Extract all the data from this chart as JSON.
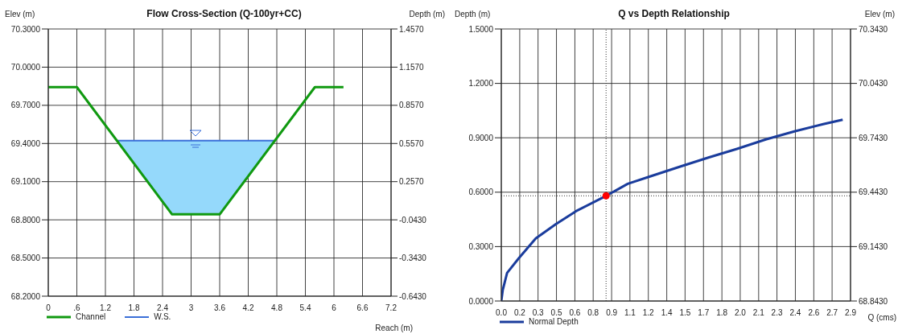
{
  "chart_data": [
    {
      "type": "line",
      "title": "Flow Cross-Section (Q-100yr+CC)",
      "xlabel": "Reach (m)",
      "ylabel": "Elev (m)",
      "y2label": "Depth (m)",
      "xlim": [
        0,
        7.2
      ],
      "xticks": [
        0,
        {
          "value": 0.6,
          "label": ".6"
        },
        1.2,
        1.8,
        2.4,
        3,
        3.6,
        4.2,
        4.8,
        5.4,
        6,
        6.6,
        7.2
      ],
      "ylim": [
        68.2,
        70.3
      ],
      "yticks": [
        {
          "value": 68.2,
          "label": "68.2000"
        },
        {
          "value": 68.5,
          "label": "68.5000"
        },
        {
          "value": 68.8,
          "label": "68.8000"
        },
        {
          "value": 69.1,
          "label": "69.1000"
        },
        {
          "value": 69.4,
          "label": "69.4000"
        },
        {
          "value": 69.7,
          "label": "69.7000"
        },
        {
          "value": 70,
          "label": "70.0000"
        },
        {
          "value": 70.3,
          "label": "70.3000"
        }
      ],
      "y2lim": [
        -0.643,
        1.457
      ],
      "y2ticks": [
        {
          "value": -0.643,
          "label": "-0.6430"
        },
        {
          "value": -0.343,
          "label": "-0.3430"
        },
        {
          "value": -0.043,
          "label": "-0.0430"
        },
        {
          "value": 0.257,
          "label": "0.2570"
        },
        {
          "value": 0.557,
          "label": "0.5570"
        },
        {
          "value": 0.857,
          "label": "0.8570"
        },
        {
          "value": 1.157,
          "label": "1.1570"
        },
        {
          "value": 1.457,
          "label": "1.4570"
        }
      ],
      "grid": true,
      "legend": "bottom left",
      "marker": "none",
      "series": [
        {
          "name": "Channel",
          "color": "#109910",
          "x": [
            0,
            0.6,
            2.6,
            3.6,
            5.6,
            6.2
          ],
          "values": [
            69.843,
            69.843,
            68.843,
            68.843,
            69.843,
            69.843
          ]
        },
        {
          "name": "W.S.",
          "type": "line",
          "color": "#3a6fd8",
          "x": [
            1.44,
            2.6,
            3.6,
            4.76
          ],
          "values": [
            69.423,
            69.423,
            69.423,
            69.423
          ],
          "lower": [
            69.423,
            68.843,
            68.843,
            69.423
          ],
          "upper": [
            69.423,
            69.423,
            69.423,
            69.423
          ]
        }
      ]
    },
    {
      "type": "line",
      "title": "Q vs Depth Relationship",
      "xlabel": "Q (cms)",
      "ylabel": "Depth (m)",
      "y2label": "Elev (m)",
      "xlim": [
        0,
        2.9
      ],
      "xticks": [
        {
          "value": 0,
          "label": "0.0"
        },
        {
          "value": 0.153,
          "label": "0.2"
        },
        {
          "value": 0.305,
          "label": "0.3"
        },
        {
          "value": 0.458,
          "label": "0.5"
        },
        {
          "value": 0.611,
          "label": "0.6"
        },
        {
          "value": 0.763,
          "label": "0.8"
        },
        {
          "value": 0.916,
          "label": "0.9"
        },
        {
          "value": 1.068,
          "label": "1.1"
        },
        {
          "value": 1.221,
          "label": "1.2"
        },
        {
          "value": 1.374,
          "label": "1.4"
        },
        {
          "value": 1.526,
          "label": "1.5"
        },
        {
          "value": 1.679,
          "label": "1.7"
        },
        {
          "value": 1.832,
          "label": "1.8"
        },
        {
          "value": 1.984,
          "label": "2.0"
        },
        {
          "value": 2.137,
          "label": "2.1"
        },
        {
          "value": 2.289,
          "label": "2.3"
        },
        {
          "value": 2.442,
          "label": "2.4"
        },
        {
          "value": 2.595,
          "label": "2.6"
        },
        {
          "value": 2.747,
          "label": "2.7"
        },
        {
          "value": 2.9,
          "label": "2.9"
        }
      ],
      "ylim": [
        0,
        1.5
      ],
      "yticks": [
        {
          "value": 0,
          "label": "0.0000"
        },
        {
          "value": 0.3,
          "label": "0.3000"
        },
        {
          "value": 0.6,
          "label": "0.6000"
        },
        {
          "value": 0.9,
          "label": "0.9000"
        },
        {
          "value": 1.2,
          "label": "1.2000"
        },
        {
          "value": 1.5,
          "label": "1.5000"
        }
      ],
      "y2lim": [
        68.843,
        70.343
      ],
      "y2ticks": [
        {
          "value": 68.843,
          "label": "68.8430"
        },
        {
          "value": 69.143,
          "label": "69.1430"
        },
        {
          "value": 69.443,
          "label": "69.4430"
        },
        {
          "value": 69.743,
          "label": "69.7430"
        },
        {
          "value": 70.043,
          "label": "70.0430"
        },
        {
          "value": 70.343,
          "label": "70.3430"
        }
      ],
      "grid": true,
      "legend": "bottom left",
      "marker": "none",
      "ref_lines": [
        {
          "axis": "y",
          "value": 0.58,
          "line_style": "dotted",
          "color": "#333333"
        },
        {
          "axis": "x",
          "value": 0.87,
          "line_style": "dotted",
          "color": "#333333"
        }
      ],
      "series": [
        {
          "name": "Normal Depth",
          "color": "#1a3c9c",
          "x": [
            0,
            0.012,
            0.048,
            0.143,
            0.286,
            0.453,
            0.62,
            0.87,
            1.05,
            1.24,
            1.48,
            1.72,
            1.957,
            2.196,
            2.434,
            2.673,
            2.835
          ],
          "values": [
            0,
            0.06,
            0.155,
            0.234,
            0.345,
            0.424,
            0.495,
            0.58,
            0.646,
            0.688,
            0.74,
            0.791,
            0.839,
            0.891,
            0.935,
            0.975,
            1.0
          ]
        },
        {
          "type": "scatter",
          "color": "#ff0000",
          "marker": "circle",
          "x": [
            0.87
          ],
          "values": [
            0.58
          ]
        }
      ]
    }
  ]
}
